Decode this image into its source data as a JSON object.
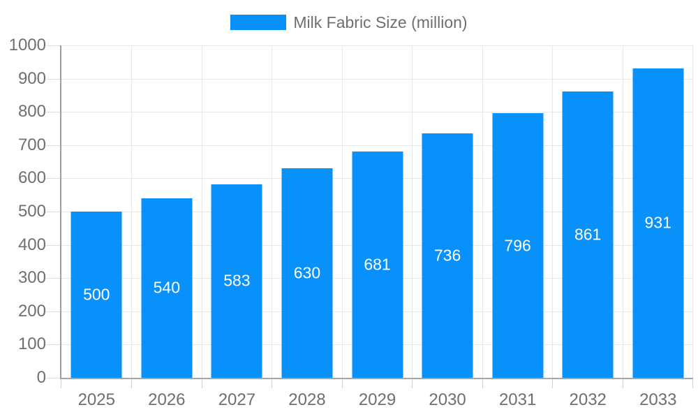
{
  "chart_data": {
    "type": "bar",
    "title": "Milk Fabric Size (million)",
    "series_name": "Milk Fabric Size (million)",
    "categories": [
      "2025",
      "2026",
      "2027",
      "2028",
      "2029",
      "2030",
      "2031",
      "2032",
      "2033"
    ],
    "values": [
      500,
      540,
      583,
      630,
      681,
      736,
      796,
      861,
      931
    ],
    "xlabel": "",
    "ylabel": "",
    "ylim": [
      0,
      1000
    ],
    "yticks": [
      0,
      100,
      200,
      300,
      400,
      500,
      600,
      700,
      800,
      900,
      1000
    ],
    "grid": true,
    "legend_position": "top-center",
    "bar_color": "#0991fb",
    "bar_label_color": "#ffffff",
    "axis_text_color": "#6f6f6f",
    "gridline_color": "#e7e7e7",
    "axis_line_color": "#a0a0a0"
  }
}
